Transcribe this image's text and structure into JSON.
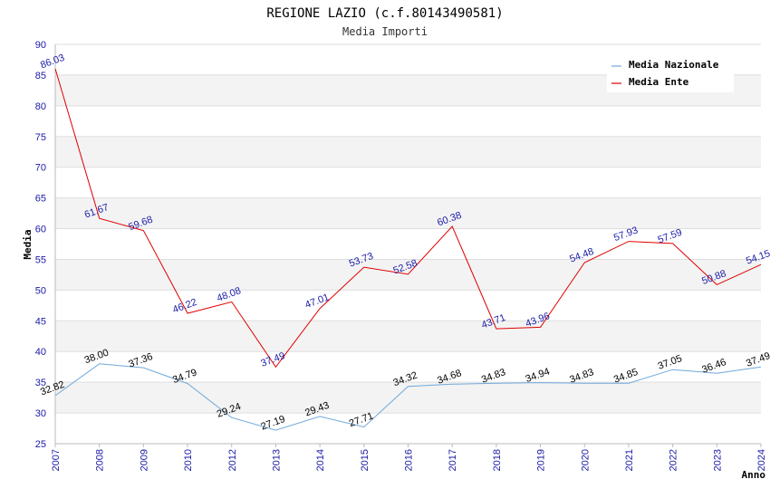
{
  "chart_data": {
    "type": "line",
    "title": "REGIONE LAZIO (c.f.80143490581)",
    "subtitle": "Media Importi",
    "xlabel": "Anno",
    "ylabel": "Media",
    "ylim": [
      25,
      90
    ],
    "yticks": [
      25,
      30,
      35,
      40,
      45,
      50,
      55,
      60,
      65,
      70,
      75,
      80,
      85,
      90
    ],
    "categories": [
      "2007",
      "2008",
      "2009",
      "2010",
      "2012",
      "2013",
      "2014",
      "2015",
      "2016",
      "2017",
      "2018",
      "2019",
      "2020",
      "2021",
      "2022",
      "2023",
      "2024"
    ],
    "grid": "horizontal-bands",
    "legend_position": "top-right",
    "series": [
      {
        "name": "Media Nazionale",
        "color": "#6fa8dc",
        "label_color": "#000000",
        "values": [
          32.82,
          38.0,
          37.36,
          34.79,
          29.24,
          27.19,
          29.43,
          27.71,
          34.32,
          34.68,
          34.83,
          34.94,
          34.83,
          34.85,
          37.05,
          36.46,
          37.49
        ],
        "labels": [
          "32.82",
          "38.00",
          "37.36",
          "34.79",
          "29.24",
          "27.19",
          "29.43",
          "27.71",
          "34.32",
          "34.68",
          "34.83",
          "34.94",
          "34.83",
          "34.85",
          "37.05",
          "36.46",
          "37.49"
        ]
      },
      {
        "name": "Media Ente",
        "color": "#e00000",
        "label_color": "#1a1aa6",
        "values": [
          86.03,
          61.67,
          59.68,
          46.22,
          48.08,
          37.49,
          47.01,
          53.73,
          52.58,
          60.38,
          43.71,
          43.96,
          54.48,
          57.93,
          57.59,
          50.88,
          54.15
        ],
        "labels": [
          "86.03",
          "61.67",
          "59.68",
          "46.22",
          "48.08",
          "37.49",
          "47.01",
          "53.73",
          "52.58",
          "60.38",
          "43.71",
          "43.96",
          "54.48",
          "57.93",
          "57.59",
          "50.88",
          "54.15"
        ]
      }
    ]
  }
}
